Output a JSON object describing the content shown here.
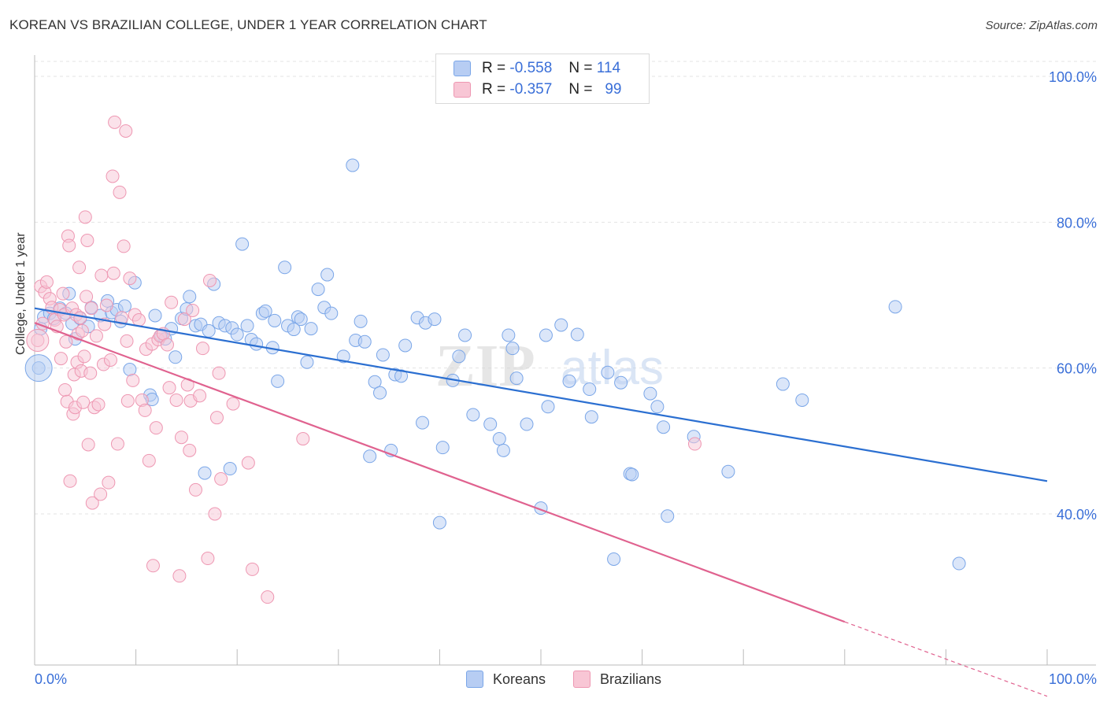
{
  "title": "KOREAN VS BRAZILIAN COLLEGE, UNDER 1 YEAR CORRELATION CHART",
  "source": "Source: ZipAtlas.com",
  "legend": {
    "r_label": "R =",
    "n_label": "N =",
    "koreans": {
      "r": "-0.558",
      "n": "114"
    },
    "brazilians": {
      "r": "-0.357",
      "n": "99"
    }
  },
  "chart_data": {
    "type": "scatter",
    "xlabel": "",
    "ylabel": "College, Under 1 year",
    "xlim": [
      0,
      100
    ],
    "ylim": [
      20,
      103
    ],
    "x_tick_labels": [
      "0.0%",
      "100.0%"
    ],
    "y_tick_labels": [
      "100.0%",
      "80.0%",
      "60.0%",
      "40.0%"
    ],
    "y_ticks": [
      100,
      80,
      60,
      40
    ],
    "grid": true,
    "legend_position": "top-center",
    "series": [
      {
        "name": "Koreans",
        "color": "#7aa6e8",
        "fill": "#b7cdf3",
        "line_color": "#2b6fd1",
        "trend": {
          "x0": 0,
          "y0": 68.2,
          "x1": 100,
          "y1": 44.5
        },
        "points": [
          [
            0.4,
            60.0
          ],
          [
            0.6,
            65.4
          ],
          [
            0.9,
            67.0
          ],
          [
            1.5,
            67.5
          ],
          [
            1.9,
            66.8
          ],
          [
            2.5,
            68.2
          ],
          [
            3.1,
            67.5
          ],
          [
            3.4,
            70.2
          ],
          [
            3.7,
            66.1
          ],
          [
            4.0,
            64.0
          ],
          [
            4.5,
            66.8
          ],
          [
            5.3,
            65.7
          ],
          [
            5.6,
            68.3
          ],
          [
            6.5,
            67.2
          ],
          [
            7.2,
            69.2
          ],
          [
            7.6,
            67.6
          ],
          [
            8.1,
            68.0
          ],
          [
            8.5,
            66.4
          ],
          [
            8.9,
            68.5
          ],
          [
            9.4,
            59.8
          ],
          [
            9.9,
            71.7
          ],
          [
            11.4,
            56.3
          ],
          [
            11.6,
            55.7
          ],
          [
            11.9,
            67.2
          ],
          [
            12.5,
            64.5
          ],
          [
            12.9,
            64.0
          ],
          [
            13.5,
            65.4
          ],
          [
            13.9,
            61.5
          ],
          [
            14.5,
            66.8
          ],
          [
            15.0,
            68.1
          ],
          [
            15.3,
            69.8
          ],
          [
            15.9,
            65.8
          ],
          [
            16.4,
            66.0
          ],
          [
            16.8,
            45.6
          ],
          [
            17.2,
            65.1
          ],
          [
            17.7,
            71.5
          ],
          [
            18.2,
            66.2
          ],
          [
            18.8,
            65.8
          ],
          [
            19.3,
            46.2
          ],
          [
            19.5,
            65.5
          ],
          [
            20.0,
            64.6
          ],
          [
            20.5,
            77.0
          ],
          [
            21.0,
            65.8
          ],
          [
            21.4,
            63.9
          ],
          [
            21.9,
            63.3
          ],
          [
            22.5,
            67.5
          ],
          [
            22.8,
            67.8
          ],
          [
            23.5,
            62.8
          ],
          [
            23.7,
            66.5
          ],
          [
            24.0,
            58.2
          ],
          [
            24.7,
            73.8
          ],
          [
            25.0,
            65.8
          ],
          [
            25.6,
            65.3
          ],
          [
            26.0,
            67.0
          ],
          [
            26.3,
            66.7
          ],
          [
            26.9,
            60.8
          ],
          [
            27.3,
            65.4
          ],
          [
            28.0,
            70.8
          ],
          [
            28.6,
            68.3
          ],
          [
            28.9,
            72.8
          ],
          [
            29.3,
            67.5
          ],
          [
            30.5,
            61.6
          ],
          [
            31.4,
            87.8
          ],
          [
            31.7,
            63.8
          ],
          [
            32.2,
            66.4
          ],
          [
            32.6,
            63.6
          ],
          [
            33.1,
            47.9
          ],
          [
            33.6,
            58.1
          ],
          [
            34.1,
            56.6
          ],
          [
            34.4,
            61.8
          ],
          [
            35.2,
            48.7
          ],
          [
            35.6,
            59.1
          ],
          [
            36.2,
            58.9
          ],
          [
            36.6,
            63.1
          ],
          [
            37.8,
            66.9
          ],
          [
            38.3,
            52.5
          ],
          [
            38.6,
            66.2
          ],
          [
            39.5,
            66.7
          ],
          [
            40.0,
            38.8
          ],
          [
            40.3,
            49.1
          ],
          [
            41.3,
            58.3
          ],
          [
            41.9,
            61.6
          ],
          [
            42.5,
            64.5
          ],
          [
            43.3,
            53.6
          ],
          [
            45.0,
            52.3
          ],
          [
            45.9,
            50.3
          ],
          [
            46.3,
            48.7
          ],
          [
            46.8,
            64.5
          ],
          [
            47.2,
            62.7
          ],
          [
            47.6,
            58.6
          ],
          [
            48.6,
            52.3
          ],
          [
            50.0,
            40.8
          ],
          [
            50.5,
            64.5
          ],
          [
            50.7,
            54.7
          ],
          [
            52.0,
            65.9
          ],
          [
            52.8,
            58.2
          ],
          [
            53.6,
            64.6
          ],
          [
            54.8,
            57.1
          ],
          [
            55.0,
            53.3
          ],
          [
            56.6,
            59.4
          ],
          [
            57.2,
            33.8
          ],
          [
            57.9,
            58.0
          ],
          [
            58.8,
            45.5
          ],
          [
            59.0,
            45.4
          ],
          [
            60.8,
            56.5
          ],
          [
            61.5,
            54.7
          ],
          [
            62.1,
            51.9
          ],
          [
            62.5,
            39.7
          ],
          [
            65.1,
            50.6
          ],
          [
            68.5,
            45.8
          ],
          [
            73.9,
            57.8
          ],
          [
            75.8,
            55.6
          ],
          [
            85.0,
            68.4
          ],
          [
            91.3,
            33.2
          ]
        ]
      },
      {
        "name": "Brazilians",
        "color": "#ee97b2",
        "fill": "#f8c6d5",
        "line_color": "#e0628f",
        "trend": {
          "x0": 0,
          "y0": 66.2,
          "x1": 80,
          "y1": 25.2
        },
        "trend_dashed": {
          "x0": 80,
          "y0": 25.2,
          "x1": 100,
          "y1": 15.0
        },
        "points": [
          [
            0.3,
            63.8
          ],
          [
            0.6,
            71.2
          ],
          [
            0.8,
            66.1
          ],
          [
            1.0,
            70.4
          ],
          [
            1.2,
            71.8
          ],
          [
            1.5,
            69.5
          ],
          [
            1.7,
            68.3
          ],
          [
            2.0,
            66.6
          ],
          [
            2.2,
            65.7
          ],
          [
            2.5,
            68.0
          ],
          [
            2.6,
            61.3
          ],
          [
            2.8,
            70.2
          ],
          [
            2.9,
            67.3
          ],
          [
            3.0,
            57.0
          ],
          [
            3.1,
            63.6
          ],
          [
            3.2,
            55.4
          ],
          [
            3.3,
            78.1
          ],
          [
            3.4,
            76.8
          ],
          [
            3.5,
            44.5
          ],
          [
            3.7,
            68.2
          ],
          [
            3.8,
            53.7
          ],
          [
            3.9,
            59.1
          ],
          [
            4.0,
            54.6
          ],
          [
            4.1,
            67.3
          ],
          [
            4.2,
            60.8
          ],
          [
            4.3,
            64.7
          ],
          [
            4.4,
            73.8
          ],
          [
            4.5,
            66.9
          ],
          [
            4.6,
            59.6
          ],
          [
            4.7,
            65.1
          ],
          [
            4.8,
            55.3
          ],
          [
            4.9,
            61.6
          ],
          [
            5.0,
            80.7
          ],
          [
            5.1,
            69.8
          ],
          [
            5.2,
            77.5
          ],
          [
            5.3,
            49.5
          ],
          [
            5.5,
            59.3
          ],
          [
            5.6,
            68.2
          ],
          [
            5.7,
            41.5
          ],
          [
            5.9,
            54.6
          ],
          [
            6.1,
            64.4
          ],
          [
            6.3,
            55.0
          ],
          [
            6.5,
            42.7
          ],
          [
            6.6,
            72.7
          ],
          [
            6.8,
            60.5
          ],
          [
            6.9,
            66.0
          ],
          [
            7.1,
            68.6
          ],
          [
            7.3,
            44.3
          ],
          [
            7.5,
            61.1
          ],
          [
            7.7,
            86.3
          ],
          [
            7.8,
            73.0
          ],
          [
            7.9,
            93.7
          ],
          [
            8.2,
            49.6
          ],
          [
            8.4,
            84.1
          ],
          [
            8.6,
            66.9
          ],
          [
            8.8,
            76.7
          ],
          [
            9.0,
            92.5
          ],
          [
            9.1,
            63.7
          ],
          [
            9.2,
            55.5
          ],
          [
            9.4,
            72.3
          ],
          [
            9.7,
            58.3
          ],
          [
            9.9,
            67.3
          ],
          [
            10.3,
            66.6
          ],
          [
            10.6,
            55.6
          ],
          [
            10.9,
            54.2
          ],
          [
            11.0,
            62.6
          ],
          [
            11.3,
            47.3
          ],
          [
            11.6,
            63.3
          ],
          [
            11.7,
            32.9
          ],
          [
            12.0,
            51.8
          ],
          [
            12.2,
            63.9
          ],
          [
            12.4,
            64.4
          ],
          [
            12.7,
            64.7
          ],
          [
            13.1,
            63.2
          ],
          [
            13.3,
            57.3
          ],
          [
            13.5,
            69.0
          ],
          [
            14.0,
            55.6
          ],
          [
            14.3,
            31.5
          ],
          [
            14.5,
            50.5
          ],
          [
            14.8,
            66.7
          ],
          [
            15.1,
            57.7
          ],
          [
            15.3,
            48.7
          ],
          [
            15.4,
            55.5
          ],
          [
            15.6,
            67.9
          ],
          [
            15.9,
            43.3
          ],
          [
            16.3,
            56.2
          ],
          [
            16.6,
            62.7
          ],
          [
            17.1,
            33.9
          ],
          [
            17.3,
            72.0
          ],
          [
            17.8,
            40.0
          ],
          [
            18.0,
            53.2
          ],
          [
            18.2,
            59.3
          ],
          [
            18.4,
            44.8
          ],
          [
            19.6,
            55.1
          ],
          [
            21.1,
            47.0
          ],
          [
            21.5,
            32.4
          ],
          [
            23.0,
            28.6
          ],
          [
            26.5,
            50.3
          ],
          [
            65.2,
            49.6
          ]
        ]
      }
    ]
  },
  "bottom_legend": [
    "Koreans",
    "Brazilians"
  ],
  "watermark": "ZIPatlas"
}
